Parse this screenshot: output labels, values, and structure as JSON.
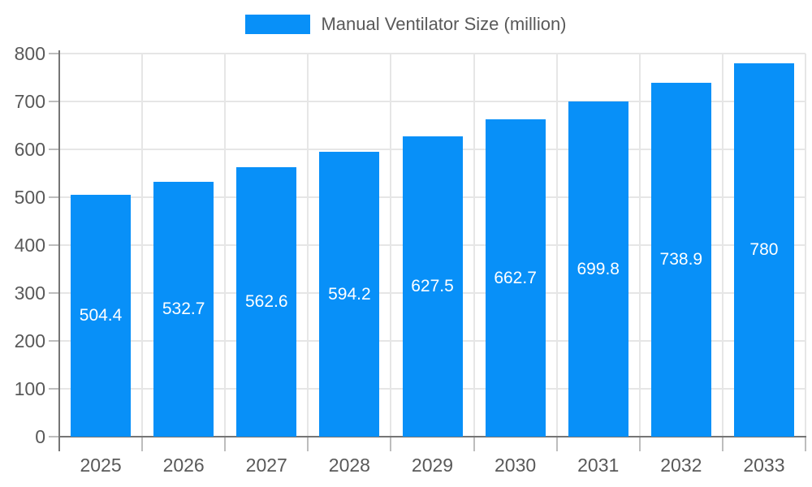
{
  "chart_data": {
    "type": "bar",
    "title": "Manual Ventilator Size (million)",
    "categories": [
      "2025",
      "2026",
      "2027",
      "2028",
      "2029",
      "2030",
      "2031",
      "2032",
      "2033"
    ],
    "values": [
      504.4,
      532.7,
      562.6,
      594.2,
      627.5,
      662.7,
      699.8,
      738.9,
      780
    ],
    "value_labels": [
      "504.4",
      "532.7",
      "562.6",
      "594.2",
      "627.5",
      "662.7",
      "699.8",
      "738.9",
      "780"
    ],
    "xlabel": "",
    "ylabel": "",
    "ylim": [
      0,
      800
    ],
    "ytick_step": 100,
    "ytick_labels": [
      "0",
      "100",
      "200",
      "300",
      "400",
      "500",
      "600",
      "700",
      "800"
    ],
    "legend_position": "top-center",
    "grid": true,
    "colors": {
      "bar": "#0890f8",
      "value_label": "#ffffff",
      "axis_label": "#595959",
      "legend_label": "#595959",
      "gridline": "#e6e6e6",
      "axis_line": "#757575",
      "tick": "#bdbdbd",
      "background": "#ffffff"
    }
  }
}
